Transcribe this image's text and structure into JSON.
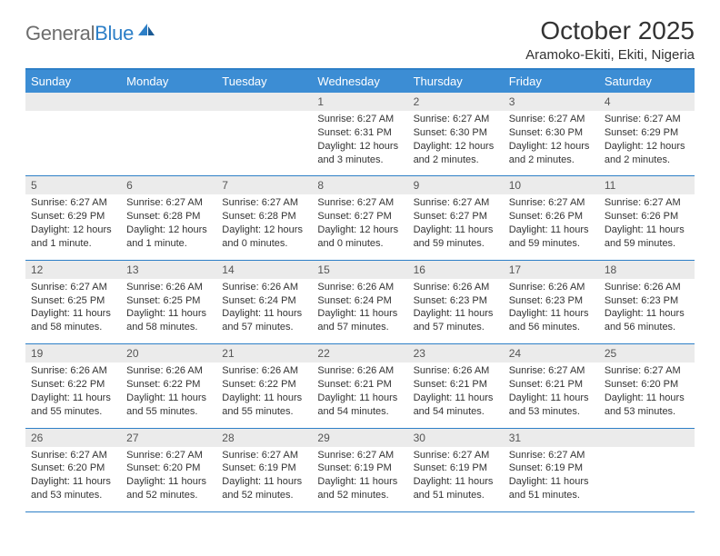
{
  "logo": {
    "general": "General",
    "blue": "Blue"
  },
  "title": "October 2025",
  "location": "Aramoko-Ekiti, Ekiti, Nigeria",
  "colors": {
    "header_bg": "#3c8dd4",
    "border": "#2d7fc7",
    "daynum_bg": "#ebebeb",
    "text": "#333333",
    "logo_gray": "#6d6d6d",
    "logo_blue": "#2d7fc7"
  },
  "day_headers": [
    "Sunday",
    "Monday",
    "Tuesday",
    "Wednesday",
    "Thursday",
    "Friday",
    "Saturday"
  ],
  "weeks": [
    {
      "nums": [
        "",
        "",
        "",
        "1",
        "2",
        "3",
        "4"
      ],
      "sunrise": [
        "",
        "",
        "",
        "Sunrise: 6:27 AM",
        "Sunrise: 6:27 AM",
        "Sunrise: 6:27 AM",
        "Sunrise: 6:27 AM"
      ],
      "sunset": [
        "",
        "",
        "",
        "Sunset: 6:31 PM",
        "Sunset: 6:30 PM",
        "Sunset: 6:30 PM",
        "Sunset: 6:29 PM"
      ],
      "day": [
        "",
        "",
        "",
        "Daylight: 12 hours and 3 minutes.",
        "Daylight: 12 hours and 2 minutes.",
        "Daylight: 12 hours and 2 minutes.",
        "Daylight: 12 hours and 2 minutes."
      ]
    },
    {
      "nums": [
        "5",
        "6",
        "7",
        "8",
        "9",
        "10",
        "11"
      ],
      "sunrise": [
        "Sunrise: 6:27 AM",
        "Sunrise: 6:27 AM",
        "Sunrise: 6:27 AM",
        "Sunrise: 6:27 AM",
        "Sunrise: 6:27 AM",
        "Sunrise: 6:27 AM",
        "Sunrise: 6:27 AM"
      ],
      "sunset": [
        "Sunset: 6:29 PM",
        "Sunset: 6:28 PM",
        "Sunset: 6:28 PM",
        "Sunset: 6:27 PM",
        "Sunset: 6:27 PM",
        "Sunset: 6:26 PM",
        "Sunset: 6:26 PM"
      ],
      "day": [
        "Daylight: 12 hours and 1 minute.",
        "Daylight: 12 hours and 1 minute.",
        "Daylight: 12 hours and 0 minutes.",
        "Daylight: 12 hours and 0 minutes.",
        "Daylight: 11 hours and 59 minutes.",
        "Daylight: 11 hours and 59 minutes.",
        "Daylight: 11 hours and 59 minutes."
      ]
    },
    {
      "nums": [
        "12",
        "13",
        "14",
        "15",
        "16",
        "17",
        "18"
      ],
      "sunrise": [
        "Sunrise: 6:27 AM",
        "Sunrise: 6:26 AM",
        "Sunrise: 6:26 AM",
        "Sunrise: 6:26 AM",
        "Sunrise: 6:26 AM",
        "Sunrise: 6:26 AM",
        "Sunrise: 6:26 AM"
      ],
      "sunset": [
        "Sunset: 6:25 PM",
        "Sunset: 6:25 PM",
        "Sunset: 6:24 PM",
        "Sunset: 6:24 PM",
        "Sunset: 6:23 PM",
        "Sunset: 6:23 PM",
        "Sunset: 6:23 PM"
      ],
      "day": [
        "Daylight: 11 hours and 58 minutes.",
        "Daylight: 11 hours and 58 minutes.",
        "Daylight: 11 hours and 57 minutes.",
        "Daylight: 11 hours and 57 minutes.",
        "Daylight: 11 hours and 57 minutes.",
        "Daylight: 11 hours and 56 minutes.",
        "Daylight: 11 hours and 56 minutes."
      ]
    },
    {
      "nums": [
        "19",
        "20",
        "21",
        "22",
        "23",
        "24",
        "25"
      ],
      "sunrise": [
        "Sunrise: 6:26 AM",
        "Sunrise: 6:26 AM",
        "Sunrise: 6:26 AM",
        "Sunrise: 6:26 AM",
        "Sunrise: 6:26 AM",
        "Sunrise: 6:27 AM",
        "Sunrise: 6:27 AM"
      ],
      "sunset": [
        "Sunset: 6:22 PM",
        "Sunset: 6:22 PM",
        "Sunset: 6:22 PM",
        "Sunset: 6:21 PM",
        "Sunset: 6:21 PM",
        "Sunset: 6:21 PM",
        "Sunset: 6:20 PM"
      ],
      "day": [
        "Daylight: 11 hours and 55 minutes.",
        "Daylight: 11 hours and 55 minutes.",
        "Daylight: 11 hours and 55 minutes.",
        "Daylight: 11 hours and 54 minutes.",
        "Daylight: 11 hours and 54 minutes.",
        "Daylight: 11 hours and 53 minutes.",
        "Daylight: 11 hours and 53 minutes."
      ]
    },
    {
      "nums": [
        "26",
        "27",
        "28",
        "29",
        "30",
        "31",
        ""
      ],
      "sunrise": [
        "Sunrise: 6:27 AM",
        "Sunrise: 6:27 AM",
        "Sunrise: 6:27 AM",
        "Sunrise: 6:27 AM",
        "Sunrise: 6:27 AM",
        "Sunrise: 6:27 AM",
        ""
      ],
      "sunset": [
        "Sunset: 6:20 PM",
        "Sunset: 6:20 PM",
        "Sunset: 6:19 PM",
        "Sunset: 6:19 PM",
        "Sunset: 6:19 PM",
        "Sunset: 6:19 PM",
        ""
      ],
      "day": [
        "Daylight: 11 hours and 53 minutes.",
        "Daylight: 11 hours and 52 minutes.",
        "Daylight: 11 hours and 52 minutes.",
        "Daylight: 11 hours and 52 minutes.",
        "Daylight: 11 hours and 51 minutes.",
        "Daylight: 11 hours and 51 minutes.",
        ""
      ]
    }
  ]
}
